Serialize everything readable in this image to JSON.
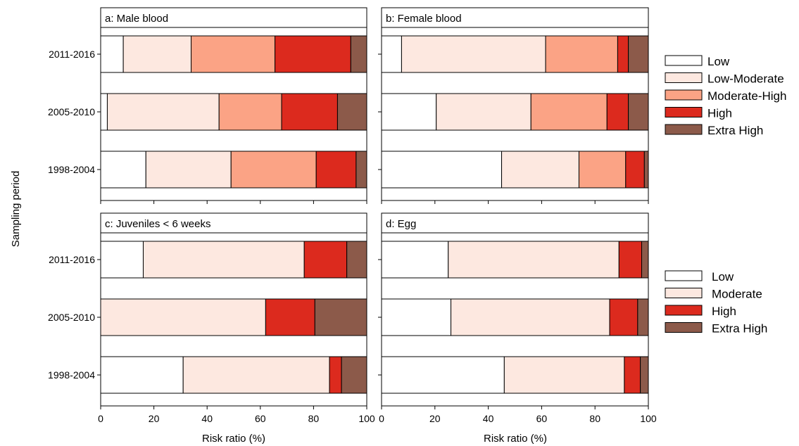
{
  "figure": {
    "ylabel": "Sampling period",
    "xlabel": "Risk ratio (%)"
  },
  "colors": {
    "Low": "#ffffff",
    "Low-Moderate": "#fde8e0",
    "Moderate": "#fde8e0",
    "Moderate-High": "#fba385",
    "High": "#dc2a1e",
    "Extra High": "#8c5a4a"
  },
  "legends": [
    {
      "entries": [
        "Low",
        "Low-Moderate",
        "Moderate-High",
        "High",
        "Extra High"
      ]
    },
    {
      "entries": [
        "Low",
        "Moderate",
        "High",
        "Extra High"
      ]
    }
  ],
  "chart_data": [
    {
      "type": "bar",
      "stacked": "horizontal",
      "title": "a: Male blood",
      "xlabel": "Risk ratio (%)",
      "ylabel": "Sampling period",
      "xlim": [
        0,
        100
      ],
      "xticks": [
        0,
        20,
        40,
        60,
        80,
        100
      ],
      "categories": [
        "2011-2016",
        "2005-2010",
        "1998-2004"
      ],
      "series": [
        {
          "name": "Low",
          "values": [
            8.5,
            2.5,
            17
          ]
        },
        {
          "name": "Low-Moderate",
          "values": [
            25.5,
            42,
            32
          ]
        },
        {
          "name": "Moderate-High",
          "values": [
            31.5,
            23.5,
            32
          ]
        },
        {
          "name": "High",
          "values": [
            28.5,
            21,
            15
          ]
        },
        {
          "name": "Extra High",
          "values": [
            6,
            11,
            4
          ]
        }
      ]
    },
    {
      "type": "bar",
      "stacked": "horizontal",
      "title": "b: Female blood",
      "xlabel": "Risk ratio (%)",
      "xlim": [
        0,
        100
      ],
      "xticks": [
        0,
        20,
        40,
        60,
        80,
        100
      ],
      "categories": [
        "2011-2016",
        "2005-2010",
        "1998-2004"
      ],
      "series": [
        {
          "name": "Low",
          "values": [
            7.5,
            20.5,
            45
          ]
        },
        {
          "name": "Low-Moderate",
          "values": [
            54,
            35.5,
            29
          ]
        },
        {
          "name": "Moderate-High",
          "values": [
            27,
            28.5,
            17.5
          ]
        },
        {
          "name": "High",
          "values": [
            4,
            8,
            7
          ]
        },
        {
          "name": "Extra High",
          "values": [
            7.5,
            7.5,
            1.5
          ]
        }
      ]
    },
    {
      "type": "bar",
      "stacked": "horizontal",
      "title": "c: Juveniles < 6 weeks",
      "xlabel": "Risk ratio (%)",
      "ylabel": "Sampling period",
      "xlim": [
        0,
        100
      ],
      "xticks": [
        0,
        20,
        40,
        60,
        80,
        100
      ],
      "categories": [
        "2011-2016",
        "2005-2010",
        "1998-2004"
      ],
      "series": [
        {
          "name": "Low",
          "values": [
            16,
            0,
            31
          ]
        },
        {
          "name": "Moderate",
          "values": [
            60.5,
            62,
            55
          ]
        },
        {
          "name": "High",
          "values": [
            16,
            18.5,
            4.5
          ]
        },
        {
          "name": "Extra High",
          "values": [
            7.5,
            19.5,
            9.5
          ]
        }
      ]
    },
    {
      "type": "bar",
      "stacked": "horizontal",
      "title": "d: Egg",
      "xlabel": "Risk ratio (%)",
      "xlim": [
        0,
        100
      ],
      "xticks": [
        0,
        20,
        40,
        60,
        80,
        100
      ],
      "categories": [
        "2011-2016",
        "2005-2010",
        "1998-2004"
      ],
      "series": [
        {
          "name": "Low",
          "values": [
            25,
            26,
            46
          ]
        },
        {
          "name": "Moderate",
          "values": [
            64,
            59.5,
            45
          ]
        },
        {
          "name": "High",
          "values": [
            8.5,
            10.5,
            6
          ]
        },
        {
          "name": "Extra High",
          "values": [
            2.5,
            4,
            3
          ]
        }
      ]
    }
  ]
}
